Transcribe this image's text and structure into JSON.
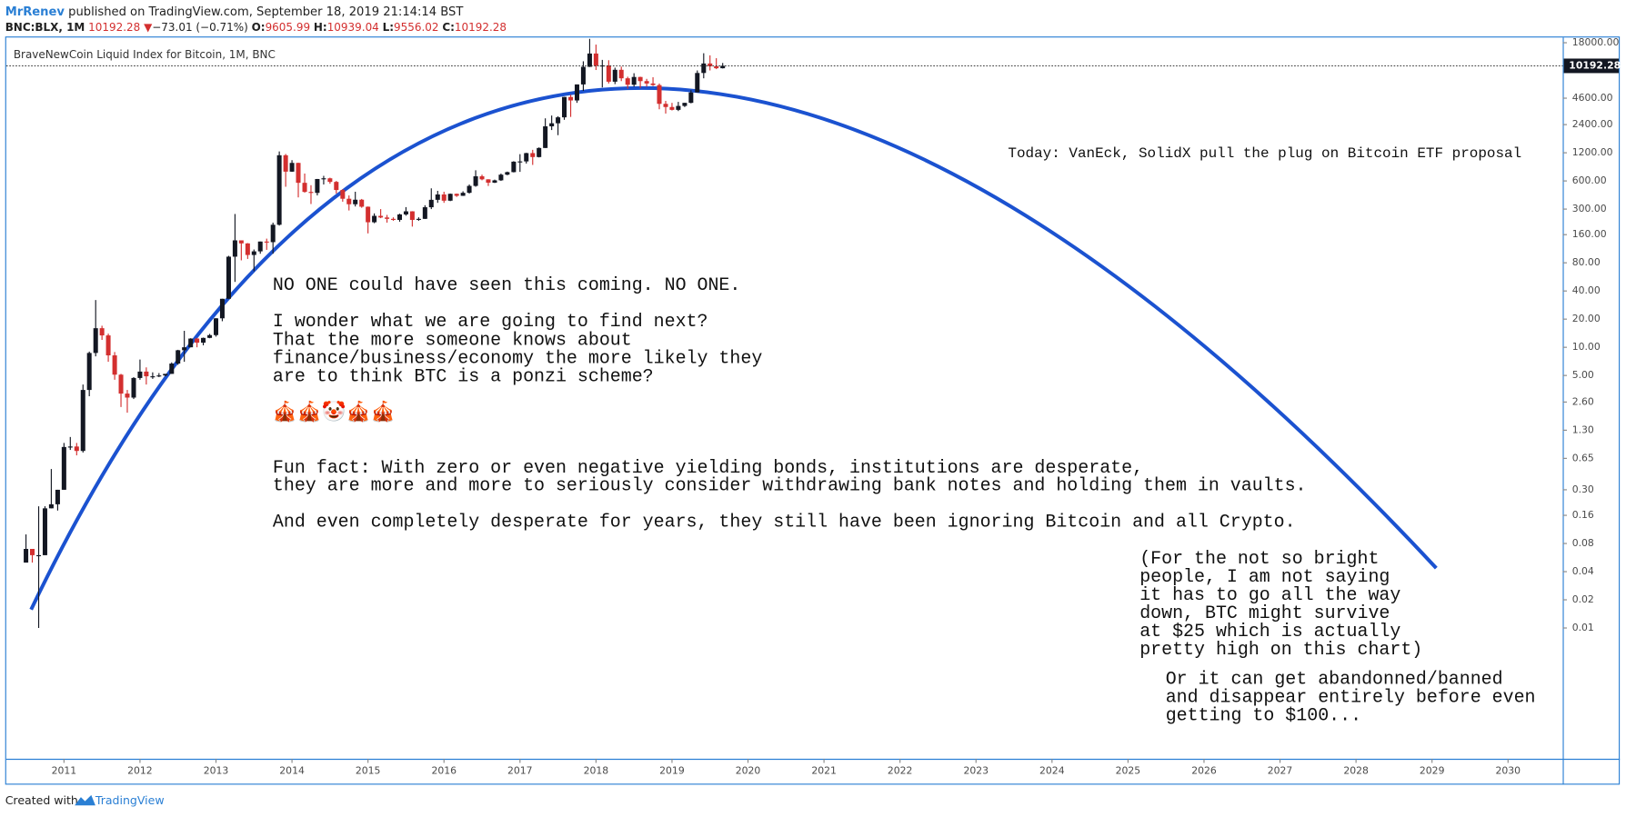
{
  "header": {
    "author": "MrRenev",
    "published": "published on TradingView.com, September 18, 2019 21:14:14 BST",
    "symbol": "BNC:BLX, 1M",
    "price": "10192.28",
    "arrow": "▼",
    "change": "−73.01 (−0.71%)",
    "o_label": "O:",
    "o": "9605.99",
    "h_label": "H:",
    "h": "10939.04",
    "l_label": "L:",
    "l": "9556.02",
    "c_label": "C:",
    "c": "10192.28"
  },
  "chart_data": {
    "type": "candlestick",
    "title": "BraveNewCoin Liquid Index for Bitcoin, 1M, BNC",
    "log_scale": true,
    "up_color": "#131722",
    "down_color": "#d32f2f",
    "last_price": 10192.28,
    "xlim": [
      2010.24,
      2030.72
    ],
    "xticks": [
      2011,
      2012,
      2013,
      2014,
      2015,
      2016,
      2017,
      2018,
      2019,
      2020,
      2021,
      2022,
      2023,
      2024,
      2025,
      2026,
      2027,
      2028,
      2029,
      2030
    ],
    "ylim": [
      0.0004,
      21000
    ],
    "yticks": [
      {
        "value": 0.01,
        "label": "0.01"
      },
      {
        "value": 0.02,
        "label": "0.02"
      },
      {
        "value": 0.04,
        "label": "0.04"
      },
      {
        "value": 0.08,
        "label": "0.08"
      },
      {
        "value": 0.16,
        "label": "0.16"
      },
      {
        "value": 0.3,
        "label": "0.30"
      },
      {
        "value": 0.65,
        "label": "0.65"
      },
      {
        "value": 1.3,
        "label": "1.30"
      },
      {
        "value": 2.6,
        "label": "2.60"
      },
      {
        "value": 5,
        "label": "5.00"
      },
      {
        "value": 10,
        "label": "10.00"
      },
      {
        "value": 20,
        "label": "20.00"
      },
      {
        "value": 40,
        "label": "40.00"
      },
      {
        "value": 80,
        "label": "80.00"
      },
      {
        "value": 160,
        "label": "160.00"
      },
      {
        "value": 300,
        "label": "300.00"
      },
      {
        "value": 600,
        "label": "600.00"
      },
      {
        "value": 1200,
        "label": "1200.00"
      },
      {
        "value": 2400,
        "label": "2400.00"
      },
      {
        "value": 4600,
        "label": "4600.00"
      },
      {
        "value": 18000,
        "label": "18000.00"
      }
    ],
    "x": [
      2010.5,
      2010.583,
      2010.667,
      2010.75,
      2010.833,
      2010.917,
      2011,
      2011.083,
      2011.167,
      2011.25,
      2011.333,
      2011.417,
      2011.5,
      2011.583,
      2011.667,
      2011.75,
      2011.833,
      2011.917,
      2012,
      2012.083,
      2012.167,
      2012.25,
      2012.333,
      2012.417,
      2012.5,
      2012.583,
      2012.667,
      2012.75,
      2012.833,
      2012.917,
      2013,
      2013.083,
      2013.167,
      2013.25,
      2013.333,
      2013.417,
      2013.5,
      2013.583,
      2013.667,
      2013.75,
      2013.833,
      2013.917,
      2014,
      2014.083,
      2014.167,
      2014.25,
      2014.333,
      2014.417,
      2014.5,
      2014.583,
      2014.667,
      2014.75,
      2014.833,
      2014.917,
      2015,
      2015.083,
      2015.167,
      2015.25,
      2015.333,
      2015.417,
      2015.5,
      2015.583,
      2015.667,
      2015.75,
      2015.833,
      2015.917,
      2016,
      2016.083,
      2016.167,
      2016.25,
      2016.333,
      2016.417,
      2016.5,
      2016.583,
      2016.667,
      2016.75,
      2016.833,
      2016.917,
      2017,
      2017.083,
      2017.167,
      2017.25,
      2017.333,
      2017.417,
      2017.5,
      2017.583,
      2017.667,
      2017.75,
      2017.833,
      2017.917,
      2018,
      2018.083,
      2018.167,
      2018.25,
      2018.333,
      2018.417,
      2018.5,
      2018.583,
      2018.667,
      2018.75,
      2018.833,
      2018.917,
      2019,
      2019.083,
      2019.167,
      2019.25,
      2019.333,
      2019.417,
      2019.5,
      2019.583,
      2019.667
    ],
    "open": [
      0.05,
      0.07,
      0.06,
      0.06,
      0.19,
      0.21,
      0.3,
      0.86,
      0.87,
      0.78,
      3.5,
      8.7,
      16,
      13.4,
      8.2,
      5.1,
      3.2,
      2.9,
      4.7,
      5.5,
      4.9,
      4.9,
      5,
      5.2,
      6.7,
      9.3,
      10,
      12.4,
      11.2,
      12.6,
      13.5,
      20.4,
      33,
      93,
      139,
      129,
      97,
      106,
      135,
      133,
      204,
      1129,
      754,
      935,
      573,
      458,
      447,
      629,
      640,
      586,
      480,
      387,
      338,
      378,
      318,
      217,
      254,
      244,
      236,
      230,
      263,
      284,
      230,
      236,
      314,
      377,
      430,
      369,
      437,
      416,
      448,
      531,
      673,
      624,
      575,
      609,
      700,
      745,
      964,
      970,
      1190,
      1080,
      1350,
      2300,
      2480,
      2870,
      4740,
      4350,
      6450,
      9950,
      13800,
      10200,
      10300,
      6900,
      9250,
      7500,
      6400,
      7750,
      7000,
      6600,
      6350,
      4000,
      3700,
      3450,
      3800,
      4100,
      5300,
      8550,
      10800,
      10100,
      9605.99
    ],
    "high": [
      0.1,
      0.07,
      0.2,
      0.2,
      0.5,
      0.3,
      0.95,
      1.1,
      0.95,
      4,
      9,
      32,
      17,
      14,
      8.9,
      5.2,
      3.5,
      4.8,
      7.4,
      6.1,
      5.4,
      5.3,
      5.2,
      6.9,
      9.4,
      15,
      12.5,
      12.6,
      12.7,
      13.9,
      20.5,
      33,
      95,
      266,
      139,
      130,
      111,
      135,
      145,
      215,
      1240,
      1165,
      1000,
      940,
      720,
      540,
      630,
      680,
      650,
      600,
      490,
      420,
      460,
      385,
      320,
      270,
      300,
      260,
      245,
      268,
      315,
      285,
      245,
      330,
      500,
      470,
      460,
      440,
      440,
      465,
      550,
      780,
      700,
      625,
      620,
      720,
      755,
      975,
      1160,
      1200,
      1290,
      1370,
      2800,
      3000,
      2950,
      4750,
      5000,
      6450,
      11400,
      19800,
      17200,
      11800,
      11700,
      9750,
      10000,
      7800,
      8500,
      7800,
      7400,
      7700,
      6600,
      4300,
      4100,
      4200,
      4100,
      5600,
      9100,
      13900,
      13200,
      12300,
      10939.04
    ],
    "low": [
      0.05,
      0.05,
      0.01,
      0.06,
      0.19,
      0.18,
      0.3,
      0.8,
      0.7,
      0.75,
      3,
      8,
      12,
      7,
      4.5,
      2.3,
      2,
      2.8,
      4.5,
      4,
      4.6,
      4.8,
      4.9,
      5.2,
      6.5,
      7,
      10,
      10,
      10.5,
      12.5,
      13,
      19,
      33,
      50,
      85,
      88,
      65,
      100,
      110,
      100,
      200,
      520,
      750,
      400,
      450,
      340,
      420,
      550,
      560,
      440,
      360,
      290,
      320,
      310,
      165,
      212,
      240,
      215,
      225,
      220,
      255,
      195,
      225,
      235,
      300,
      350,
      350,
      365,
      405,
      415,
      440,
      520,
      610,
      530,
      570,
      600,
      690,
      740,
      750,
      920,
      890,
      1070,
      1350,
      2100,
      1850,
      2700,
      2900,
      4100,
      5500,
      9900,
      9200,
      6000,
      6600,
      6500,
      7000,
      5800,
      6100,
      5900,
      6100,
      6200,
      3500,
      3150,
      3400,
      3350,
      3700,
      4050,
      5300,
      7500,
      9100,
      9400,
      9556.02
    ],
    "close": [
      0.07,
      0.06,
      0.06,
      0.19,
      0.21,
      0.3,
      0.86,
      0.87,
      0.78,
      3.5,
      8.7,
      16,
      13.4,
      8.2,
      5.1,
      3.2,
      2.9,
      4.7,
      5.5,
      4.9,
      4.9,
      5,
      5.2,
      6.7,
      9.3,
      10,
      12.4,
      11.2,
      12.6,
      13.5,
      20.4,
      33,
      93,
      139,
      129,
      97,
      106,
      135,
      133,
      204,
      1129,
      754,
      935,
      573,
      458,
      447,
      629,
      640,
      586,
      480,
      387,
      338,
      378,
      318,
      217,
      254,
      244,
      236,
      230,
      263,
      284,
      230,
      236,
      314,
      377,
      430,
      369,
      437,
      416,
      448,
      531,
      673,
      624,
      575,
      609,
      700,
      745,
      964,
      970,
      1190,
      1080,
      1350,
      2300,
      2480,
      2870,
      4740,
      4350,
      6450,
      9950,
      13800,
      10200,
      10300,
      6900,
      9250,
      7500,
      6400,
      7750,
      7000,
      6600,
      6350,
      4000,
      3700,
      3450,
      3800,
      4100,
      5300,
      8550,
      10800,
      10100,
      9605.99,
      10192.28
    ],
    "annotations": [
      {
        "lines": [
          "Today: VanEck, SolidX pull the plug on Bitcoin ETF proposal"
        ]
      },
      {
        "lines": [
          "NO ONE could have seen this coming. NO ONE.",
          "",
          "I wonder what we are going to find next?",
          "That the more someone knows about",
          "finance/business/economy the more likely they",
          "are to think BTC is a ponzi scheme?"
        ]
      },
      {
        "lines": [
          "🎪🎪🤡🎪🎪"
        ]
      },
      {
        "lines": [
          "Fun fact: With zero or even negative yielding bonds, institutions are desperate,",
          "they are more and more to seriously consider withdrawing bank notes and holding them in vaults.",
          "",
          "And even completely desperate for years, they still have been ignoring Bitcoin and all Crypto."
        ]
      },
      {
        "lines": [
          "(For the not so bright",
          "people, I am not saying",
          "it has to go all the way",
          "down, BTC might survive",
          "at $25 which is actually",
          "pretty high on this chart)"
        ]
      },
      {
        "lines": [
          "Or it can get abandonned/banned",
          "and disappear entirely before even",
          "getting to $100..."
        ]
      }
    ]
  },
  "footer": {
    "text": "Created with",
    "brand": "TradingView"
  }
}
